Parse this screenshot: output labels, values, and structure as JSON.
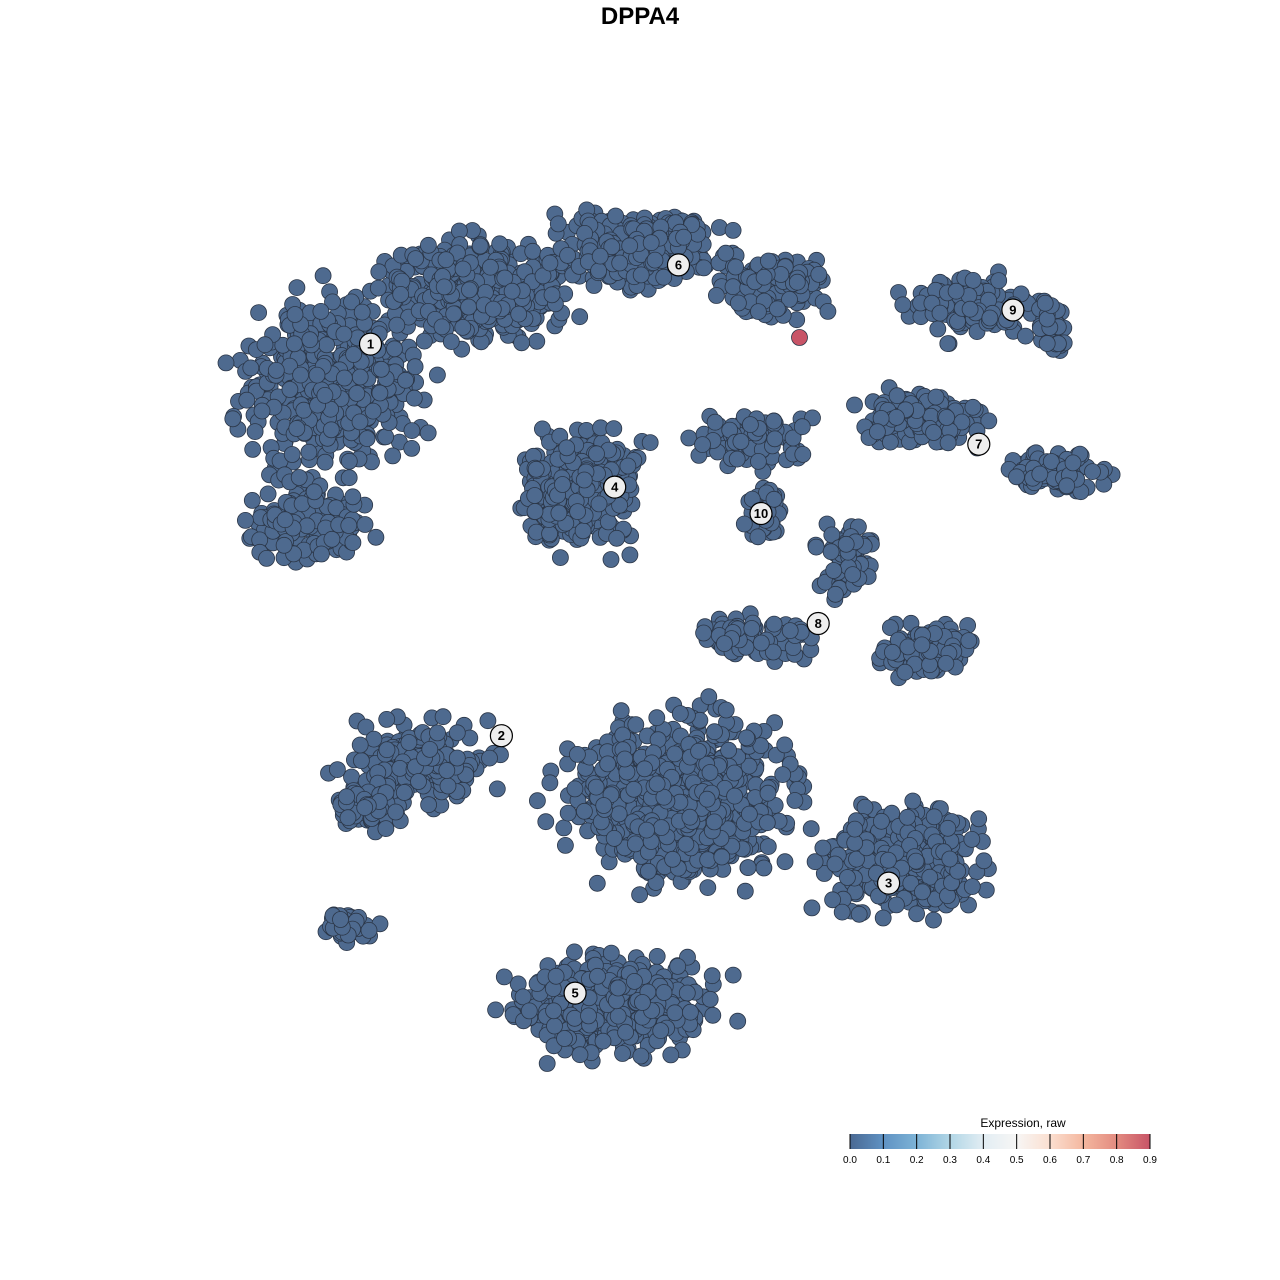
{
  "chart_data": {
    "type": "scatter",
    "title": "DPPA4",
    "xlabel": "",
    "ylabel": "",
    "grid": false,
    "axes_visible": false,
    "point_color_default": "#4e6a8f",
    "cluster_labels": [
      {
        "label": "1",
        "x": -24.5,
        "y": 26.9
      },
      {
        "label": "2",
        "x": -12.6,
        "y": -8.7
      },
      {
        "label": "3",
        "x": 22.6,
        "y": -22.1
      },
      {
        "label": "4",
        "x": -2.3,
        "y": 13.9
      },
      {
        "label": "5",
        "x": -5.9,
        "y": -32.1
      },
      {
        "label": "6",
        "x": 3.5,
        "y": 34.1
      },
      {
        "label": "7",
        "x": 30.8,
        "y": 17.8
      },
      {
        "label": "8",
        "x": 16.2,
        "y": 1.5
      },
      {
        "label": "9",
        "x": 33.9,
        "y": 30.0
      },
      {
        "label": "10",
        "x": 11.0,
        "y": 11.5
      }
    ],
    "expressing_points": [
      {
        "x": 14.5,
        "y": 27.5,
        "expression": 0.9
      }
    ],
    "legend": {
      "title": "Expression, raw",
      "placement": "bottom-right",
      "ticks": [
        "0.0",
        "0.1",
        "0.2",
        "0.3",
        "0.4",
        "0.5",
        "0.6",
        "0.7",
        "0.8",
        "0.9"
      ],
      "range": [
        0,
        0.9
      ],
      "colors": [
        "#4a6993",
        "#5f92c3",
        "#7db3d6",
        "#b1d6e6",
        "#e2edf3",
        "#f7f6f5",
        "#fbdfd0",
        "#f4b79f",
        "#e38b80",
        "#c85467"
      ]
    }
  }
}
